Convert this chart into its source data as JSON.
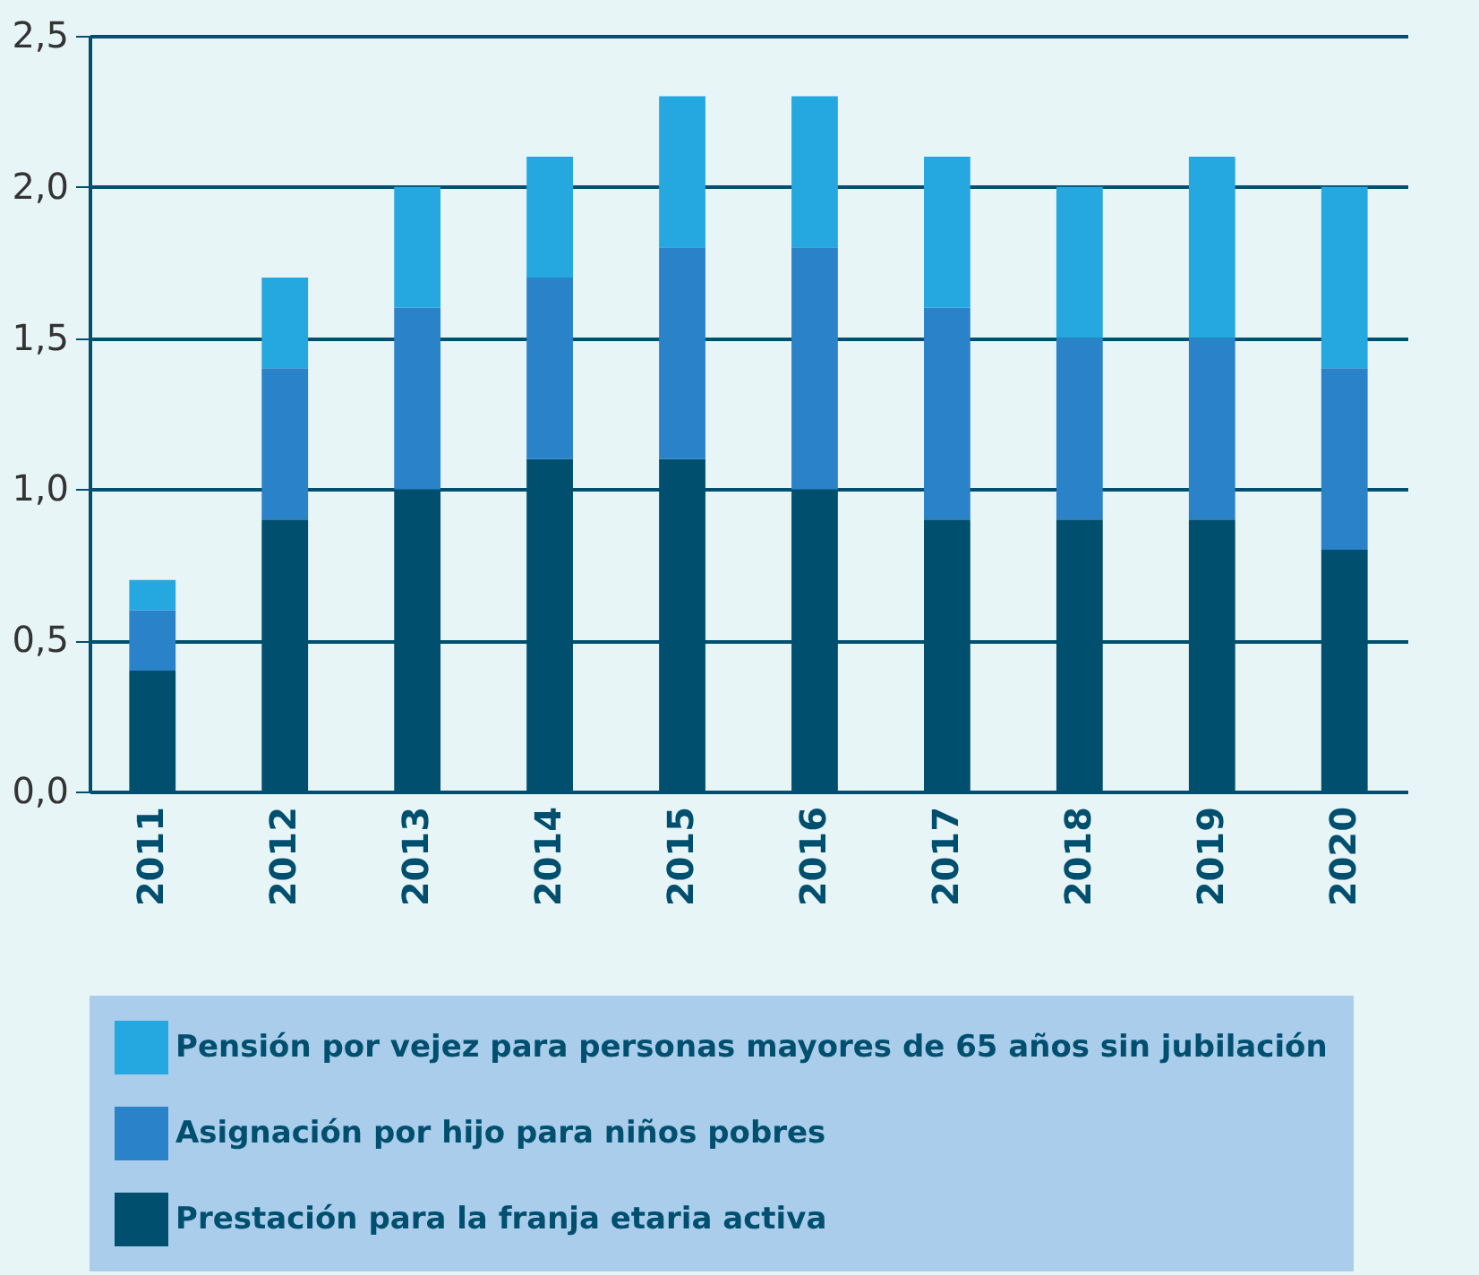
{
  "chart_data": {
    "type": "bar",
    "stacked": true,
    "categories": [
      "2011",
      "2012",
      "2013",
      "2014",
      "2015",
      "2016",
      "2017",
      "2018",
      "2019",
      "2020"
    ],
    "series": [
      {
        "name": "Prestación para la franja etaria activa",
        "color": "#004f6e",
        "values": [
          0.4,
          0.9,
          1.0,
          1.1,
          1.1,
          1.0,
          0.9,
          0.9,
          0.9,
          0.8
        ]
      },
      {
        "name": "Asignación por hijo para niños pobres",
        "color": "#2a82c8",
        "values": [
          0.2,
          0.5,
          0.6,
          0.6,
          0.7,
          0.8,
          0.7,
          0.6,
          0.6,
          0.6
        ]
      },
      {
        "name": "Pensión por vejez para personas mayores de 65 años sin jubilación",
        "color": "#25a8e0",
        "values": [
          0.1,
          0.3,
          0.4,
          0.4,
          0.5,
          0.5,
          0.5,
          0.5,
          0.6,
          0.6
        ]
      }
    ],
    "ylim": [
      0,
      2.5
    ],
    "yticks": [
      {
        "value": 0,
        "label": "0,0"
      },
      {
        "value": 0.5,
        "label": "0,5"
      },
      {
        "value": 1,
        "label": "1,0"
      },
      {
        "value": 1.5,
        "label": "1,5"
      },
      {
        "value": 2,
        "label": "2,0"
      },
      {
        "value": 2.5,
        "label": "2,5"
      }
    ],
    "grid": "y",
    "legend": "bottom"
  }
}
